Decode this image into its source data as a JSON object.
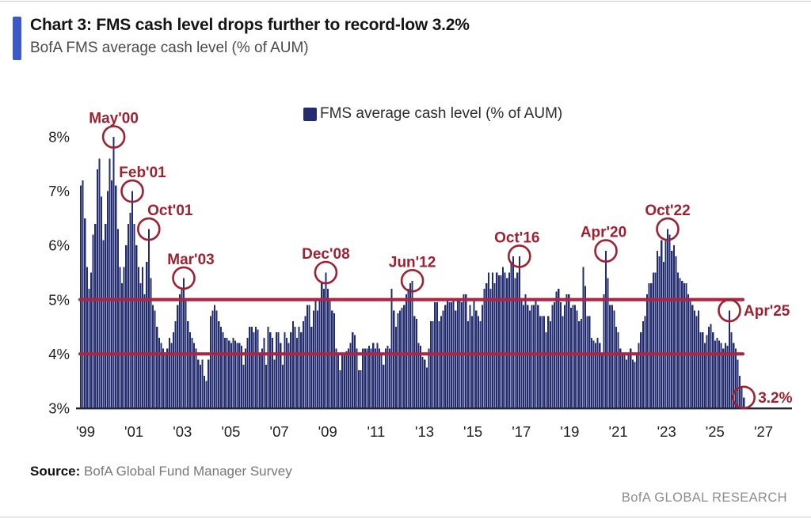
{
  "header": {
    "title": "Chart 3: FMS cash level drops further to record-low 3.2%",
    "subtitle": "BofA FMS average cash level (% of AUM)"
  },
  "legend": {
    "label": "FMS average cash level (% of AUM)"
  },
  "chart_data": {
    "type": "bar",
    "title": "BofA FMS average cash level (% of AUM)",
    "frequency": "monthly",
    "x_start": "1999-01",
    "x_end": "2025-11",
    "ylim": [
      3,
      8
    ],
    "grid": false,
    "legend_position": "top-center",
    "y_axis": {
      "ticks": [
        {
          "label": "8%",
          "value": 8
        },
        {
          "label": "7%",
          "value": 7
        },
        {
          "label": "6%",
          "value": 6
        },
        {
          "label": "5%",
          "value": 5
        },
        {
          "label": "4%",
          "value": 4
        },
        {
          "label": "3%",
          "value": 3
        }
      ]
    },
    "x_axis": {
      "ticks": [
        {
          "label": "'99",
          "year": 1999
        },
        {
          "label": "'01",
          "year": 2001
        },
        {
          "label": "'03",
          "year": 2003
        },
        {
          "label": "'05",
          "year": 2005
        },
        {
          "label": "'07",
          "year": 2007
        },
        {
          "label": "'09",
          "year": 2009
        },
        {
          "label": "'11",
          "year": 2011
        },
        {
          "label": "'13",
          "year": 2013
        },
        {
          "label": "'15",
          "year": 2015
        },
        {
          "label": "'17",
          "year": 2017
        },
        {
          "label": "'19",
          "year": 2019
        },
        {
          "label": "'21",
          "year": 2021
        },
        {
          "label": "'23",
          "year": 2023
        },
        {
          "label": "'25",
          "year": 2025
        },
        {
          "label": "'27",
          "year": 2027
        }
      ]
    },
    "reference_lines": [
      {
        "value": 5
      },
      {
        "value": 4
      }
    ],
    "series": [
      {
        "name": "FMS average cash level (% of AUM)",
        "values": [
          7.1,
          7.2,
          6.5,
          5.6,
          5.2,
          5.5,
          6.2,
          6.4,
          7.4,
          7.6,
          6.9,
          6.1,
          6.4,
          7.0,
          7.6,
          7.2,
          8.0,
          7.1,
          6.3,
          5.6,
          5.3,
          5.6,
          6.0,
          6.4,
          6.6,
          7.0,
          6.4,
          6.0,
          5.6,
          5.3,
          5.6,
          5.1,
          5.7,
          6.3,
          5.4,
          4.9,
          4.8,
          4.5,
          4.3,
          4.2,
          4.1,
          4.0,
          4.1,
          4.3,
          4.2,
          4.4,
          4.6,
          4.9,
          5.1,
          5.2,
          5.4,
          5.0,
          4.6,
          4.4,
          4.3,
          4.2,
          4.1,
          3.9,
          3.8,
          3.9,
          3.6,
          3.5,
          3.9,
          4.7,
          4.8,
          4.9,
          4.8,
          4.6,
          4.5,
          4.4,
          4.3,
          4.3,
          4.25,
          4.2,
          4.3,
          4.25,
          4.2,
          4.2,
          4.15,
          3.8,
          4.1,
          4.3,
          4.5,
          4.5,
          4.4,
          4.5,
          4.45,
          4.0,
          4.1,
          4.3,
          3.8,
          4.5,
          4.4,
          4.3,
          3.9,
          4.4,
          4.4,
          4.2,
          3.8,
          4.4,
          4.3,
          4.2,
          4.4,
          4.6,
          4.5,
          4.3,
          4.5,
          4.4,
          4.6,
          4.7,
          4.9,
          4.9,
          4.5,
          4.8,
          5.0,
          4.8,
          5.0,
          5.3,
          5.2,
          5.5,
          5.2,
          5.0,
          4.8,
          4.75,
          4.1,
          4.0,
          3.7,
          4.0,
          4.0,
          4.05,
          4.1,
          4.2,
          4.4,
          4.35,
          4.1,
          3.7,
          3.7,
          4.1,
          4.1,
          4.1,
          4.15,
          4.1,
          4.2,
          4.1,
          4.2,
          4.1,
          4.0,
          3.8,
          4.1,
          4.15,
          4.1,
          5.2,
          4.8,
          4.5,
          4.75,
          4.8,
          4.85,
          4.9,
          5.1,
          5.2,
          5.3,
          5.35,
          4.7,
          4.65,
          4.2,
          4.15,
          3.95,
          3.9,
          3.75,
          4.1,
          4.6,
          4.6,
          4.95,
          4.95,
          4.6,
          4.7,
          4.8,
          4.9,
          5.0,
          4.95,
          4.95,
          5.0,
          4.8,
          5.0,
          5.0,
          4.95,
          5.1,
          5.1,
          4.6,
          4.9,
          4.7,
          5.0,
          4.8,
          4.7,
          4.6,
          4.9,
          5.2,
          5.3,
          5.5,
          5.2,
          5.5,
          5.3,
          5.5,
          5.45,
          5.45,
          5.6,
          5.5,
          5.4,
          5.5,
          5.7,
          5.8,
          5.4,
          5.5,
          5.8,
          5.0,
          4.9,
          5.1,
          4.9,
          4.8,
          4.9,
          4.9,
          5.0,
          4.9,
          4.7,
          4.7,
          4.7,
          4.4,
          4.7,
          4.6,
          4.9,
          4.95,
          5.15,
          5.2,
          4.95,
          4.7,
          4.9,
          5.1,
          5.1,
          4.85,
          4.9,
          4.9,
          4.8,
          4.6,
          4.65,
          5.6,
          5.25,
          4.7,
          4.7,
          4.3,
          4.25,
          4.2,
          4.3,
          4.2,
          4.0,
          5.1,
          5.9,
          5.4,
          4.9,
          4.9,
          4.8,
          4.5,
          4.4,
          4.1,
          4.0,
          4.0,
          3.9,
          4.0,
          4.1,
          3.9,
          3.85,
          4.0,
          4.2,
          4.4,
          4.6,
          4.7,
          5.1,
          5.3,
          5.3,
          5.5,
          5.5,
          5.9,
          5.8,
          6.1,
          5.7,
          6.1,
          6.3,
          6.2,
          5.9,
          6.0,
          5.8,
          5.5,
          5.4,
          5.35,
          5.3,
          5.3,
          5.1,
          5.0,
          4.9,
          4.8,
          4.7,
          4.8,
          4.4,
          4.4,
          4.2,
          4.35,
          4.5,
          4.55,
          4.4,
          4.25,
          4.3,
          4.25,
          4.2,
          4.1,
          4.2,
          4.15,
          4.8,
          4.4,
          4.2,
          4.1,
          3.9,
          3.6,
          3.4,
          3.2
        ]
      }
    ],
    "annotations": [
      {
        "label": "May'00",
        "index": 16,
        "value": 8.0,
        "placement": "above",
        "label_dx": 0
      },
      {
        "label": "Feb'01",
        "index": 25,
        "value": 7.0,
        "placement": "above",
        "label_dx": 13
      },
      {
        "label": "Oct'01",
        "index": 33,
        "value": 6.3,
        "placement": "above",
        "label_dx": 27
      },
      {
        "label": "Mar'03",
        "index": 50,
        "value": 5.4,
        "placement": "above",
        "label_dx": 9
      },
      {
        "label": "Dec'08",
        "index": 119,
        "value": 5.5,
        "placement": "above",
        "label_dx": 0
      },
      {
        "label": "Jun'12",
        "index": 161,
        "value": 5.35,
        "placement": "above",
        "label_dx": 0
      },
      {
        "label": "Oct'16",
        "index": 213,
        "value": 5.8,
        "placement": "above",
        "label_dx": -3
      },
      {
        "label": "Apr'20",
        "index": 255,
        "value": 5.9,
        "placement": "above",
        "label_dx": -3
      },
      {
        "label": "Oct'22",
        "index": 285,
        "value": 6.3,
        "placement": "above",
        "label_dx": 0
      },
      {
        "label": "Apr'25",
        "index": 315,
        "value": 4.8,
        "placement": "right",
        "label_dx": 0
      },
      {
        "label": "3.2%",
        "index": 322,
        "value": 3.2,
        "placement": "right",
        "label_dx": 0
      }
    ]
  },
  "source": {
    "label": "Source:",
    "text": "BofA Global Fund Manager Survey"
  },
  "footer": {
    "brand": "BofA GLOBAL RESEARCH"
  },
  "colors": {
    "bar": "#222c6f",
    "reference_line": "#ad2444",
    "annotation": "#9e2130",
    "accent_bar": "#3b5ac6",
    "axis_line": "#26263a",
    "tick_text": "#1f1f1f"
  }
}
